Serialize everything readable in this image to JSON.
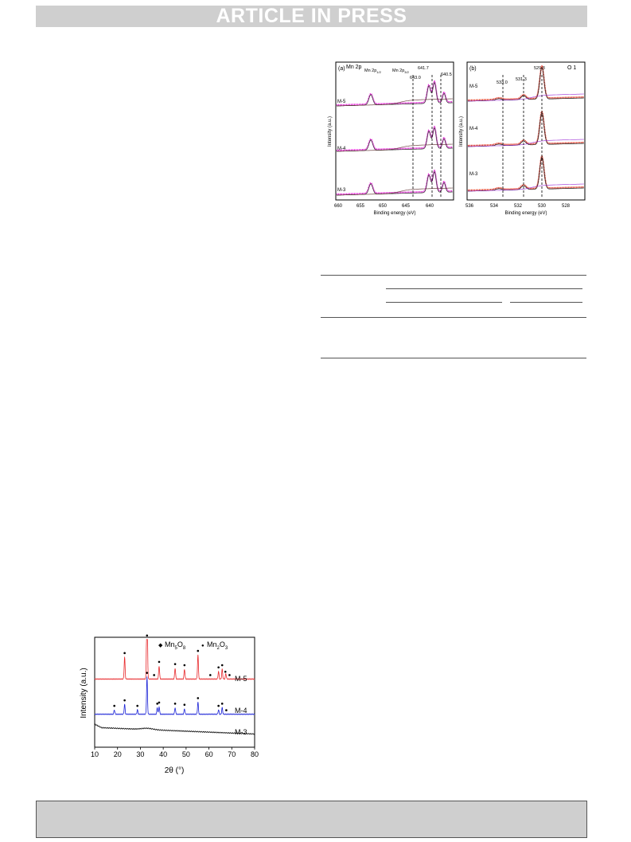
{
  "banner": {
    "text": "ARTICLE IN PRESS"
  },
  "fig_xps_mn": {
    "panel": "(a)",
    "region": "Mn 2p",
    "xlabel": "Binding energy (eV)",
    "ylabel": "Intensity (a.u.)",
    "xticks": [
      "660",
      "655",
      "650",
      "645",
      "640"
    ],
    "peak_labels": {
      "p12_main": "Mn 2p",
      "p12_sub": "1/2",
      "p32_main": "Mn 2p",
      "p32_sub": "3/2",
      "e1": "641.7",
      "e2": "640.5",
      "e3": "643.0"
    },
    "samples": [
      "M-5",
      "M-4",
      "M-3"
    ]
  },
  "fig_xps_o": {
    "panel": "(b)",
    "region": "O 1",
    "xlabel": "Binding energy (eV)",
    "ylabel": "Intensity (a.u.)",
    "xticks": [
      "536",
      "534",
      "532",
      "530",
      "528"
    ],
    "peak_labels": {
      "e1": "533.0",
      "e2": "531.3",
      "e3": "529.8"
    },
    "samples": [
      "M-5",
      "M-4",
      "M-3"
    ]
  },
  "chart_data": {
    "type": "line",
    "title": "",
    "xlabel": "2θ (°)",
    "ylabel": "Intensity (a.u.)",
    "xlim": [
      10,
      80
    ],
    "xticks": [
      "10",
      "20",
      "30",
      "40",
      "50",
      "60",
      "70",
      "80"
    ],
    "legend": [
      {
        "symbol": "◆",
        "main": "Mn",
        "sub1": "5",
        "main2": "O",
        "sub2": "8"
      },
      {
        "symbol": "●",
        "main": "Mn",
        "sub1": "2",
        "main2": "O",
        "sub2": "3"
      }
    ],
    "series": [
      {
        "name": "M-5",
        "color": "#e8282b",
        "offset": 0.62,
        "peaks": [
          [
            23.1,
            0.2
          ],
          [
            32.9,
            0.9
          ],
          [
            38.2,
            0.12
          ],
          [
            45.2,
            0.1
          ],
          [
            49.3,
            0.09
          ],
          [
            55.2,
            0.22
          ],
          [
            64.2,
            0.07
          ],
          [
            65.8,
            0.09
          ],
          [
            67.4,
            0.05
          ]
        ]
      },
      {
        "name": "M-4",
        "color": "#1a22d6",
        "offset": 0.3,
        "peaks": [
          [
            18.6,
            0.04
          ],
          [
            23.1,
            0.09
          ],
          [
            28.7,
            0.04
          ],
          [
            32.9,
            0.34
          ],
          [
            37.4,
            0.06
          ],
          [
            38.2,
            0.07
          ],
          [
            45.2,
            0.06
          ],
          [
            49.3,
            0.05
          ],
          [
            55.2,
            0.11
          ],
          [
            64.2,
            0.04
          ],
          [
            65.8,
            0.06
          ]
        ]
      },
      {
        "name": "M-3",
        "color": "#000000",
        "offset": 0.18,
        "peaks": []
      }
    ],
    "markers": {
      "M-5": [
        23.1,
        32.9,
        36.0,
        38.2,
        45.2,
        49.3,
        55.2,
        60.6,
        64.2,
        65.8,
        67.2,
        69.0
      ],
      "M-4": [
        18.6,
        23.1,
        28.7,
        32.9,
        37.4,
        38.2,
        45.2,
        49.3,
        55.2,
        64.2,
        65.8,
        67.6
      ]
    }
  }
}
